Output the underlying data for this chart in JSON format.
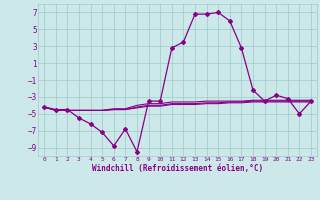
{
  "xlabel": "Windchill (Refroidissement éolien,°C)",
  "xlim": [
    -0.5,
    23.5
  ],
  "ylim": [
    -10,
    8
  ],
  "yticks": [
    7,
    5,
    3,
    1,
    -1,
    -3,
    -5,
    -7,
    -9
  ],
  "xticks": [
    0,
    1,
    2,
    3,
    4,
    5,
    6,
    7,
    8,
    9,
    10,
    11,
    12,
    13,
    14,
    15,
    16,
    17,
    18,
    19,
    20,
    21,
    22,
    23
  ],
  "bg_color": "#cce8e8",
  "grid_color": "#99cccc",
  "line_color": "#880088",
  "main_y": [
    -4.2,
    -4.5,
    -4.5,
    -5.5,
    -6.2,
    -7.2,
    -8.8,
    -6.8,
    -9.5,
    -3.5,
    -3.5,
    2.8,
    3.5,
    6.8,
    6.8,
    7.0,
    6.0,
    2.8,
    -2.2,
    -3.5,
    -2.8,
    -3.2,
    -5.0,
    -3.5
  ],
  "flat_lines": [
    [
      -4.2,
      -4.6,
      -4.6,
      -4.6,
      -4.6,
      -4.6,
      -4.4,
      -4.4,
      -4.0,
      -3.8,
      -3.8,
      -3.6,
      -3.6,
      -3.6,
      -3.5,
      -3.5,
      -3.5,
      -3.5,
      -3.4,
      -3.4,
      -3.4,
      -3.4,
      -3.4,
      -3.4
    ],
    [
      -4.2,
      -4.6,
      -4.6,
      -4.6,
      -4.6,
      -4.6,
      -4.5,
      -4.5,
      -4.2,
      -4.0,
      -4.0,
      -3.8,
      -3.8,
      -3.8,
      -3.7,
      -3.7,
      -3.6,
      -3.6,
      -3.5,
      -3.5,
      -3.5,
      -3.5,
      -3.5,
      -3.5
    ],
    [
      -4.2,
      -4.6,
      -4.6,
      -4.6,
      -4.6,
      -4.6,
      -4.5,
      -4.5,
      -4.3,
      -4.1,
      -4.1,
      -3.9,
      -3.9,
      -3.9,
      -3.8,
      -3.8,
      -3.7,
      -3.7,
      -3.6,
      -3.6,
      -3.6,
      -3.6,
      -3.6,
      -3.6
    ]
  ]
}
